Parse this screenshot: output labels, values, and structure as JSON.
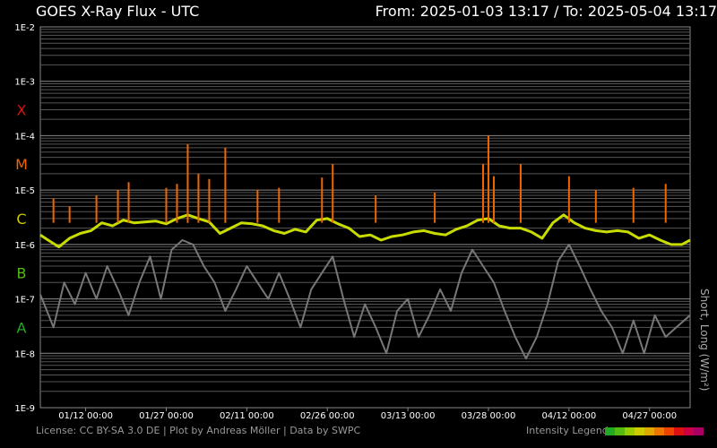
{
  "header": {
    "title": "GOES X-Ray Flux - UTC",
    "range": "From: 2025-01-03 13:17  /  To: 2025-05-04 13:17"
  },
  "footer": {
    "credits": "License: CC BY-SA 3.0 DE | Plot by Andreas Möller | Data by SWPC",
    "legend_label": "Intensity Legend",
    "legend_colors": [
      "#22aa22",
      "#55bb11",
      "#99cc00",
      "#cccc00",
      "#ddaa00",
      "#ee7700",
      "#ee4400",
      "#dd1111",
      "#cc0044",
      "#aa0066"
    ]
  },
  "chart_data": {
    "type": "line",
    "title": "GOES X-Ray Flux - UTC",
    "ylabel": "Short, Long (W/m²)",
    "y_scale": "log",
    "ylim": [
      1e-09,
      0.01
    ],
    "xlim": [
      "2025-01-03 13:17",
      "2025-05-04 13:17"
    ],
    "y_ticks": [
      "1E-2",
      "1E-3",
      "1E-4",
      "1E-5",
      "1E-6",
      "1E-7",
      "1E-8",
      "1E-9"
    ],
    "x_ticks": [
      {
        "date": "2025-01-12 00:00",
        "label": "01/12 00:00"
      },
      {
        "date": "2025-01-27 00:00",
        "label": "01/27 00:00"
      },
      {
        "date": "2025-02-11 00:00",
        "label": "02/11 00:00"
      },
      {
        "date": "2025-02-26 00:00",
        "label": "02/26 00:00"
      },
      {
        "date": "2025-03-13 00:00",
        "label": "03/13 00:00"
      },
      {
        "date": "2025-03-28 00:00",
        "label": "03/28 00:00"
      },
      {
        "date": "2025-04-12 00:00",
        "label": "04/12 00:00"
      },
      {
        "date": "2025-04-27 00:00",
        "label": "04/27 00:00"
      }
    ],
    "flare_classes": [
      {
        "label": "X",
        "flux": 0.0003,
        "color": "#dd1111"
      },
      {
        "label": "M",
        "flux": 3e-05,
        "color": "#ee6600"
      },
      {
        "label": "C",
        "flux": 3e-06,
        "color": "#cccc00"
      },
      {
        "label": "B",
        "flux": 3e-07,
        "color": "#55bb11"
      },
      {
        "label": "A",
        "flux": 3e-08,
        "color": "#22aa22"
      }
    ],
    "grid": true,
    "series": [
      {
        "color": "#777777",
        "points": [
          [
            "2025-01-03 13:17",
            1.2e-07
          ],
          [
            "2025-01-06 00:00",
            3e-08
          ],
          [
            "2025-01-08 00:00",
            2e-07
          ],
          [
            "2025-01-10 00:00",
            8e-08
          ],
          [
            "2025-01-12 00:00",
            3e-07
          ],
          [
            "2025-01-14 00:00",
            1e-07
          ],
          [
            "2025-01-16 00:00",
            4e-07
          ],
          [
            "2025-01-18 00:00",
            1.5e-07
          ],
          [
            "2025-01-20 00:00",
            5e-08
          ],
          [
            "2025-01-22 00:00",
            2e-07
          ],
          [
            "2025-01-24 00:00",
            6e-07
          ],
          [
            "2025-01-26 00:00",
            1e-07
          ],
          [
            "2025-01-28 00:00",
            8e-07
          ],
          [
            "2025-01-30 00:00",
            1.2e-06
          ],
          [
            "2025-02-01 00:00",
            1e-06
          ],
          [
            "2025-02-03 00:00",
            4e-07
          ],
          [
            "2025-02-05 00:00",
            2e-07
          ],
          [
            "2025-02-07 00:00",
            6e-08
          ],
          [
            "2025-02-09 00:00",
            1.5e-07
          ],
          [
            "2025-02-11 00:00",
            4e-07
          ],
          [
            "2025-02-13 00:00",
            2e-07
          ],
          [
            "2025-02-15 00:00",
            1e-07
          ],
          [
            "2025-02-17 00:00",
            3e-07
          ],
          [
            "2025-02-19 00:00",
            1e-07
          ],
          [
            "2025-02-21 00:00",
            3e-08
          ],
          [
            "2025-02-23 00:00",
            1.5e-07
          ],
          [
            "2025-02-25 00:00",
            3e-07
          ],
          [
            "2025-02-27 00:00",
            6e-07
          ],
          [
            "2025-03-01 00:00",
            1e-07
          ],
          [
            "2025-03-03 00:00",
            2e-08
          ],
          [
            "2025-03-05 00:00",
            8e-08
          ],
          [
            "2025-03-07 00:00",
            3e-08
          ],
          [
            "2025-03-09 00:00",
            1e-08
          ],
          [
            "2025-03-11 00:00",
            6e-08
          ],
          [
            "2025-03-13 00:00",
            1e-07
          ],
          [
            "2025-03-15 00:00",
            2e-08
          ],
          [
            "2025-03-17 00:00",
            5e-08
          ],
          [
            "2025-03-19 00:00",
            1.5e-07
          ],
          [
            "2025-03-21 00:00",
            6e-08
          ],
          [
            "2025-03-23 00:00",
            3e-07
          ],
          [
            "2025-03-25 00:00",
            8e-07
          ],
          [
            "2025-03-27 00:00",
            4e-07
          ],
          [
            "2025-03-29 00:00",
            2e-07
          ],
          [
            "2025-03-31 00:00",
            6e-08
          ],
          [
            "2025-04-02 00:00",
            2e-08
          ],
          [
            "2025-04-04 00:00",
            8e-09
          ],
          [
            "2025-04-06 00:00",
            2e-08
          ],
          [
            "2025-04-08 00:00",
            8e-08
          ],
          [
            "2025-04-10 00:00",
            5e-07
          ],
          [
            "2025-04-12 00:00",
            1e-06
          ],
          [
            "2025-04-14 00:00",
            4e-07
          ],
          [
            "2025-04-16 00:00",
            1.5e-07
          ],
          [
            "2025-04-18 00:00",
            6e-08
          ],
          [
            "2025-04-20 00:00",
            3e-08
          ],
          [
            "2025-04-22 00:00",
            1e-08
          ],
          [
            "2025-04-24 00:00",
            4e-08
          ],
          [
            "2025-04-26 00:00",
            1e-08
          ],
          [
            "2025-04-28 00:00",
            5e-08
          ],
          [
            "2025-04-30 00:00",
            2e-08
          ],
          [
            "2025-05-02 00:00",
            3e-08
          ],
          [
            "2025-05-04 13:17",
            5e-08
          ]
        ]
      },
      {
        "color": "#c8dc00",
        "points": [
          [
            "2025-01-03 13:17",
            1.5e-06
          ],
          [
            "2025-01-05 00:00",
            1.2e-06
          ],
          [
            "2025-01-07 00:00",
            9e-07
          ],
          [
            "2025-01-09 00:00",
            1.3e-06
          ],
          [
            "2025-01-11 00:00",
            1.6e-06
          ],
          [
            "2025-01-13 00:00",
            1.8e-06
          ],
          [
            "2025-01-15 00:00",
            2.5e-06
          ],
          [
            "2025-01-17 00:00",
            2.2e-06
          ],
          [
            "2025-01-19 00:00",
            2.8e-06
          ],
          [
            "2025-01-21 00:00",
            2.5e-06
          ],
          [
            "2025-01-23 00:00",
            2.6e-06
          ],
          [
            "2025-01-25 00:00",
            2.7e-06
          ],
          [
            "2025-01-27 00:00",
            2.4e-06
          ],
          [
            "2025-01-29 00:00",
            3e-06
          ],
          [
            "2025-01-31 00:00",
            3.5e-06
          ],
          [
            "2025-02-02 00:00",
            3e-06
          ],
          [
            "2025-02-04 00:00",
            2.6e-06
          ],
          [
            "2025-02-06 00:00",
            1.6e-06
          ],
          [
            "2025-02-08 00:00",
            2e-06
          ],
          [
            "2025-02-10 00:00",
            2.5e-06
          ],
          [
            "2025-02-12 00:00",
            2.4e-06
          ],
          [
            "2025-02-14 00:00",
            2.2e-06
          ],
          [
            "2025-02-16 00:00",
            1.8e-06
          ],
          [
            "2025-02-18 00:00",
            1.6e-06
          ],
          [
            "2025-02-20 00:00",
            1.9e-06
          ],
          [
            "2025-02-22 00:00",
            1.7e-06
          ],
          [
            "2025-02-24 00:00",
            2.8e-06
          ],
          [
            "2025-02-26 00:00",
            3e-06
          ],
          [
            "2025-02-28 00:00",
            2.4e-06
          ],
          [
            "2025-03-02 00:00",
            2e-06
          ],
          [
            "2025-03-04 00:00",
            1.4e-06
          ],
          [
            "2025-03-06 00:00",
            1.5e-06
          ],
          [
            "2025-03-08 00:00",
            1.2e-06
          ],
          [
            "2025-03-10 00:00",
            1.4e-06
          ],
          [
            "2025-03-12 00:00",
            1.5e-06
          ],
          [
            "2025-03-14 00:00",
            1.7e-06
          ],
          [
            "2025-03-16 00:00",
            1.8e-06
          ],
          [
            "2025-03-18 00:00",
            1.6e-06
          ],
          [
            "2025-03-20 00:00",
            1.5e-06
          ],
          [
            "2025-03-22 00:00",
            1.9e-06
          ],
          [
            "2025-03-24 00:00",
            2.2e-06
          ],
          [
            "2025-03-26 00:00",
            2.8e-06
          ],
          [
            "2025-03-28 00:00",
            3e-06
          ],
          [
            "2025-03-30 00:00",
            2.2e-06
          ],
          [
            "2025-04-01 00:00",
            2e-06
          ],
          [
            "2025-04-03 00:00",
            2e-06
          ],
          [
            "2025-04-05 00:00",
            1.7e-06
          ],
          [
            "2025-04-07 00:00",
            1.3e-06
          ],
          [
            "2025-04-09 00:00",
            2.5e-06
          ],
          [
            "2025-04-11 00:00",
            3.5e-06
          ],
          [
            "2025-04-13 00:00",
            2.5e-06
          ],
          [
            "2025-04-15 00:00",
            2e-06
          ],
          [
            "2025-04-17 00:00",
            1.8e-06
          ],
          [
            "2025-04-19 00:00",
            1.7e-06
          ],
          [
            "2025-04-21 00:00",
            1.8e-06
          ],
          [
            "2025-04-23 00:00",
            1.7e-06
          ],
          [
            "2025-04-25 00:00",
            1.3e-06
          ],
          [
            "2025-04-27 00:00",
            1.5e-06
          ],
          [
            "2025-04-29 00:00",
            1.2e-06
          ],
          [
            "2025-05-01 00:00",
            1e-06
          ],
          [
            "2025-05-03 00:00",
            1e-06
          ],
          [
            "2025-05-04 13:17",
            1.2e-06
          ]
        ]
      },
      {
        "color": "#ee6600",
        "points": [
          [
            "2025-01-06 00:00",
            7e-06
          ],
          [
            "2025-01-09 00:00",
            5e-06
          ],
          [
            "2025-01-14 00:00",
            8e-06
          ],
          [
            "2025-01-18 00:00",
            1e-05
          ],
          [
            "2025-01-20 00:00",
            1.4e-05
          ],
          [
            "2025-01-27 00:00",
            1.1e-05
          ],
          [
            "2025-01-29 00:00",
            1.3e-05
          ],
          [
            "2025-01-31 00:00",
            7e-05
          ],
          [
            "2025-02-02 00:00",
            2e-05
          ],
          [
            "2025-02-04 00:00",
            1.6e-05
          ],
          [
            "2025-02-07 00:00",
            6e-05
          ],
          [
            "2025-02-13 00:00",
            1e-05
          ],
          [
            "2025-02-17 00:00",
            1.1e-05
          ],
          [
            "2025-02-25 00:00",
            1.7e-05
          ],
          [
            "2025-02-27 00:00",
            3e-05
          ],
          [
            "2025-03-07 00:00",
            8e-06
          ],
          [
            "2025-03-18 00:00",
            9e-06
          ],
          [
            "2025-03-27 00:00",
            3e-05
          ],
          [
            "2025-03-28 00:00",
            0.0001
          ],
          [
            "2025-03-29 00:00",
            1.8e-05
          ],
          [
            "2025-04-03 00:00",
            3e-05
          ],
          [
            "2025-04-12 00:00",
            1.8e-05
          ],
          [
            "2025-04-17 00:00",
            1e-05
          ],
          [
            "2025-04-24 00:00",
            1.1e-05
          ],
          [
            "2025-04-30 00:00",
            1.3e-05
          ]
        ]
      }
    ]
  }
}
